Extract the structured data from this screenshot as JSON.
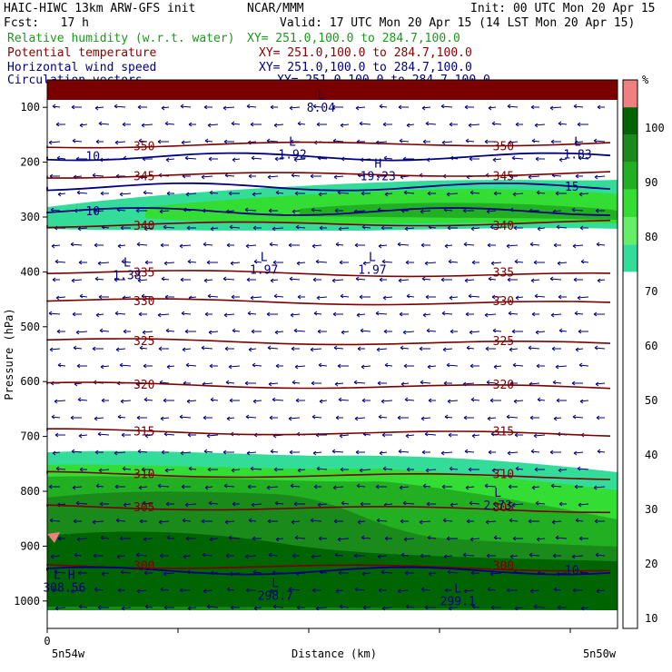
{
  "header": {
    "model": "HAIC-HIWC 13km ARW-GFS init",
    "org": "NCAR/MMM",
    "init": "Init: 00 UTC Mon 20 Apr 15",
    "fcst": "Fcst:   17 h",
    "valid": "Valid: 17 UTC Mon 20 Apr 15 (14 LST Mon 20 Apr 15)"
  },
  "fields": [
    {
      "name": "Relative humidity (w.r.t. water)",
      "xy": "XY= 251.0,100.0 to 284.7,100.0",
      "color": "#1a9a1a"
    },
    {
      "name": "Potential temperature",
      "xy": "XY= 251.0,100.0 to 284.7,100.0",
      "color": "#8b0000"
    },
    {
      "name": "Horizontal wind speed",
      "xy": "XY= 251.0,100.0 to 284.7,100.0",
      "color": "#000080"
    },
    {
      "name": "Circulation vectors",
      "xy": "XY= 251.0,100.0 to 284.7,100.0",
      "color": "#000080"
    }
  ],
  "colorbar": {
    "unit": "%",
    "ticks": [
      "100",
      "90",
      "80",
      "70",
      "60",
      "50",
      "40",
      "30",
      "20",
      "10"
    ],
    "colors": [
      "#f08080",
      "#006400",
      "#1a8a1a",
      "#22b022",
      "#33dd33",
      "#66ee66",
      "#33dd99"
    ]
  },
  "chart_data": {
    "type": "contour",
    "ylabel": "Pressure (hPa)",
    "xlabel": "Distance (km)",
    "xlim_labels": [
      "5n54w",
      "5n50w"
    ],
    "x_origin_label": "0",
    "y_ticks": [
      "100",
      "200",
      "300",
      "400",
      "500",
      "600",
      "700",
      "800",
      "900",
      "1000"
    ],
    "ylim": [
      50,
      1050
    ],
    "theta_contours": [
      {
        "label": "350",
        "p": 170
      },
      {
        "label": "345",
        "p": 225
      },
      {
        "label": "340",
        "p": 315
      },
      {
        "label": "335",
        "p": 400
      },
      {
        "label": "330",
        "p": 452
      },
      {
        "label": "325",
        "p": 525
      },
      {
        "label": "320",
        "p": 605
      },
      {
        "label": "315",
        "p": 690
      },
      {
        "label": "310",
        "p": 768
      },
      {
        "label": "305",
        "p": 828
      },
      {
        "label": "300",
        "p": 935
      }
    ],
    "wind_contours": [
      {
        "label": "10",
        "p": 190
      },
      {
        "label": "15",
        "p": 245
      },
      {
        "label": "10",
        "p": 290
      },
      {
        "label": "10",
        "p": 945
      }
    ],
    "extrema": [
      {
        "label": "L",
        "value": "8.04",
        "x": 0.48,
        "p": 85
      },
      {
        "label": "L",
        "value": "1.92",
        "x": 0.43,
        "p": 170
      },
      {
        "label": "H",
        "value": "19.23",
        "x": 0.58,
        "p": 210
      },
      {
        "label": "L",
        "value": "1.83",
        "x": 0.93,
        "p": 170
      },
      {
        "label": "L",
        "value": "1.38",
        "x": 0.14,
        "p": 390
      },
      {
        "label": "L",
        "value": "1.97",
        "x": 0.38,
        "p": 380
      },
      {
        "label": "L",
        "value": "1.97",
        "x": 0.57,
        "p": 380
      },
      {
        "label": "L",
        "value": "2.73",
        "x": 0.79,
        "p": 810
      },
      {
        "label": "L",
        "value": "298.7",
        "x": 0.4,
        "p": 975
      },
      {
        "label": "L",
        "value": "299.1",
        "x": 0.72,
        "p": 985
      },
      {
        "label": "L H",
        "value": "308.56",
        "x": 0.03,
        "p": 960
      }
    ]
  }
}
